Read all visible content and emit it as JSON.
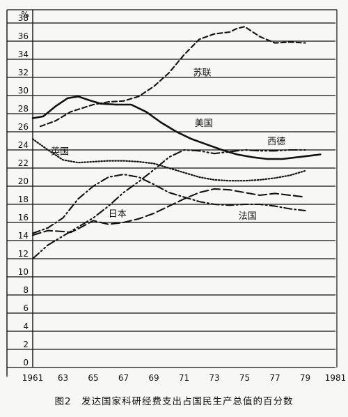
{
  "caption": "图2　发达国家科研经费支出占国民生产总值的百分数",
  "chart_data": {
    "type": "line",
    "title": "图2　发达国家科研经费支出占国民生产总值的百分数",
    "unit_label": "%",
    "xlim": [
      1961,
      1981
    ],
    "ylim": [
      0,
      38
    ],
    "grid": "horizontal",
    "x_ticks": [
      "1961",
      "63",
      "65",
      "67",
      "69",
      "71",
      "73",
      "75",
      "77",
      "79",
      "1981"
    ],
    "y_ticks": [
      "0",
      "2",
      "4",
      "6",
      "8",
      "10",
      "12",
      "14",
      "16",
      "18",
      "20",
      "22",
      "24",
      "26",
      "28",
      "30",
      "32",
      "34",
      "36",
      "38"
    ],
    "series": [
      {
        "name": "苏联",
        "style": "dashed",
        "x": [
          1961.5,
          1962.5,
          1963.5,
          1965,
          1966,
          1967,
          1968,
          1969,
          1970,
          1971,
          1972,
          1973,
          1974,
          1974.5,
          1975,
          1976,
          1977,
          1978,
          1979
        ],
        "y": [
          26.6,
          27.2,
          28.2,
          29.0,
          29.3,
          29.4,
          29.9,
          31.0,
          32.5,
          34.5,
          36.2,
          36.8,
          37.0,
          37.4,
          37.6,
          36.5,
          35.8,
          35.9,
          35.8
        ]
      },
      {
        "name": "美国",
        "style": "solid",
        "x": [
          1961,
          1961.7,
          1962.5,
          1963.3,
          1964,
          1964.7,
          1965.5,
          1966.5,
          1967.5,
          1968.5,
          1969.5,
          1970.5,
          1971.5,
          1972.5,
          1973.5,
          1974.5,
          1975.5,
          1976.5,
          1977.5,
          1978.5,
          1979.5,
          1980
        ],
        "y": [
          27.5,
          27.7,
          28.8,
          29.7,
          29.9,
          29.5,
          29.1,
          29.0,
          29.0,
          28.2,
          27.0,
          26.0,
          25.2,
          24.6,
          24.0,
          23.5,
          23.2,
          23.0,
          23.0,
          23.2,
          23.4,
          23.5
        ]
      },
      {
        "name": "西德",
        "style": "dash-dot-dot",
        "x": [
          1961,
          1962,
          1963,
          1964,
          1965,
          1966,
          1967,
          1968,
          1969,
          1970,
          1971,
          1972,
          1973,
          1974,
          1975,
          1976,
          1977,
          1978,
          1979
        ],
        "y": [
          12.0,
          13.5,
          14.5,
          15.5,
          16.5,
          17.8,
          19.3,
          20.5,
          21.8,
          23.2,
          24.0,
          23.9,
          23.6,
          23.8,
          24.0,
          23.9,
          23.9,
          24.0,
          24.0
        ]
      },
      {
        "name": "英国",
        "style": "dotted",
        "x": [
          1961,
          1962,
          1963,
          1964,
          1965,
          1966,
          1967,
          1968,
          1969,
          1970,
          1971,
          1972,
          1973,
          1974,
          1975,
          1976,
          1977,
          1978,
          1979
        ],
        "y": [
          25.2,
          24.0,
          22.9,
          22.6,
          22.7,
          22.8,
          22.8,
          22.7,
          22.5,
          22.0,
          21.5,
          21.0,
          20.7,
          20.6,
          20.6,
          20.7,
          20.9,
          21.2,
          21.7
        ]
      },
      {
        "name": "日本",
        "style": "long-dash",
        "x": [
          1961,
          1962,
          1963,
          1963.5,
          1964,
          1965,
          1966,
          1967,
          1968,
          1969,
          1970,
          1971,
          1972,
          1973,
          1974,
          1975,
          1976,
          1977,
          1978,
          1979
        ],
        "y": [
          14.6,
          15.1,
          15.0,
          14.9,
          15.3,
          16.2,
          15.8,
          16.0,
          16.4,
          17.0,
          17.8,
          18.6,
          19.3,
          19.7,
          19.6,
          19.3,
          19.0,
          19.2,
          19.0,
          18.8
        ]
      },
      {
        "name": "法国",
        "style": "dash-dot",
        "x": [
          1961,
          1962,
          1963,
          1964,
          1965,
          1966,
          1967,
          1968,
          1969,
          1970,
          1971,
          1972,
          1973,
          1974,
          1975,
          1976,
          1977,
          1978,
          1979
        ],
        "y": [
          14.8,
          15.4,
          16.5,
          18.6,
          20.0,
          21.0,
          21.3,
          21.0,
          20.2,
          19.3,
          18.8,
          18.3,
          18.0,
          17.9,
          18.0,
          18.0,
          17.8,
          17.5,
          17.3
        ]
      }
    ],
    "series_label_anchor": [
      {
        "name": "苏联",
        "x": 1971.6,
        "y": 32.2
      },
      {
        "name": "美国",
        "x": 1971.7,
        "y": 26.6
      },
      {
        "name": "西德",
        "x": 1976.5,
        "y": 24.6
      },
      {
        "name": "英国",
        "x": 1962.2,
        "y": 23.5
      },
      {
        "name": "日本",
        "x": 1966.0,
        "y": 16.6
      },
      {
        "name": "法国",
        "x": 1974.6,
        "y": 16.4
      }
    ]
  }
}
